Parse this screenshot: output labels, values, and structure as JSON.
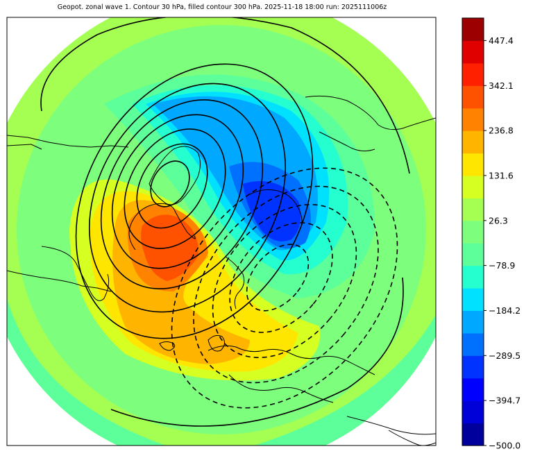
{
  "title": "Geopot. zonal wave 1. Contour 30 hPa, filled contour 300 hPa. 2025-11-18 18:00 run: 2025111006z",
  "colorbar": {
    "min": -500.0,
    "max": 500.0,
    "tick_labels": [
      "447.4",
      "342.1",
      "236.8",
      "131.6",
      "26.3",
      "−78.9",
      "−184.2",
      "−289.5",
      "−394.7",
      "−500.0"
    ],
    "tick_values": [
      447.4,
      342.1,
      236.8,
      131.6,
      26.3,
      -78.9,
      -184.2,
      -289.5,
      -394.7,
      -500.0
    ],
    "colors": [
      "#00009c",
      "#0000d8",
      "#0000ff",
      "#0033ff",
      "#0070ff",
      "#00a8ff",
      "#00e0ff",
      "#25ffd0",
      "#5cff9a",
      "#7dff7d",
      "#a5ff52",
      "#d6ff22",
      "#ffe600",
      "#ffb400",
      "#ff8200",
      "#ff5200",
      "#ff2000",
      "#e00000",
      "#9c0000"
    ]
  },
  "map": {
    "projection": "north-polar-stereographic",
    "background_field": "300 hPa zonal wave 1 geopotential (filled)",
    "overlay_field": "30 hPa zonal wave 1 geopotential (contours)",
    "land_outline_color": "#000000"
  }
}
